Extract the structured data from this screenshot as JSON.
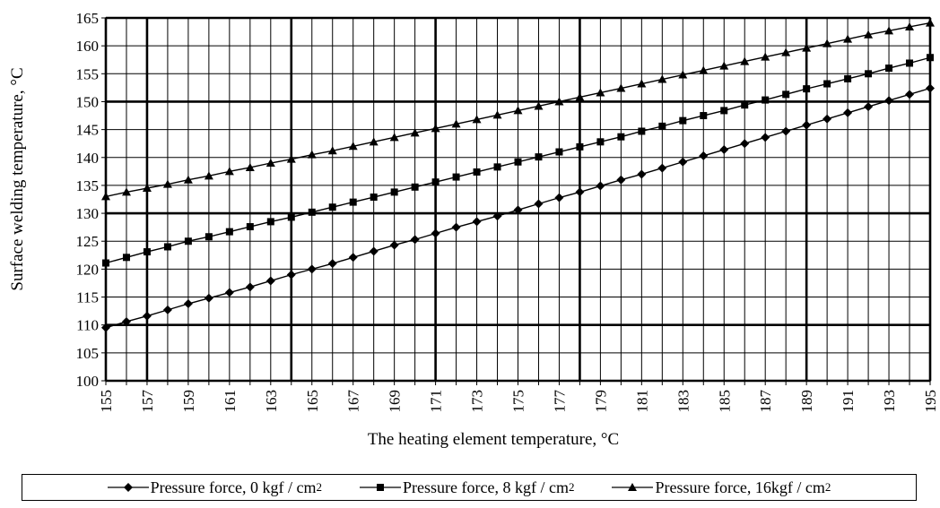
{
  "chart_data": {
    "type": "line",
    "xlabel": "The heating element temperature, °C",
    "ylabel": "Surface welding temperature, °C",
    "xlim": [
      155,
      195
    ],
    "ylim": [
      100,
      165
    ],
    "x_tick_labels": [
      "155",
      "157",
      "159",
      "161",
      "163",
      "165",
      "167",
      "169",
      "171",
      "173",
      "175",
      "177",
      "179",
      "181",
      "183",
      "185",
      "187",
      "189",
      "191",
      "193",
      "195"
    ],
    "y_tick_labels": [
      "100",
      "105",
      "110",
      "115",
      "120",
      "125",
      "130",
      "135",
      "140",
      "145",
      "150",
      "155",
      "160",
      "165"
    ],
    "grid": true,
    "legend_position": "bottom",
    "x": [
      155,
      156,
      157,
      158,
      159,
      160,
      161,
      162,
      163,
      164,
      165,
      166,
      167,
      168,
      169,
      170,
      171,
      172,
      173,
      174,
      175,
      176,
      177,
      178,
      179,
      180,
      181,
      182,
      183,
      184,
      185,
      186,
      187,
      188,
      189,
      190,
      191,
      192,
      193,
      194,
      195
    ],
    "series": [
      {
        "name": "Pressure force, 0 kgf / cm",
        "unit_sup": "2",
        "marker": "diamond",
        "values": [
          109.5,
          110.6,
          111.6,
          112.7,
          113.8,
          114.8,
          115.8,
          116.8,
          117.9,
          119.0,
          120.0,
          121.0,
          122.1,
          123.2,
          124.3,
          125.3,
          126.4,
          127.5,
          128.5,
          129.5,
          130.6,
          131.7,
          132.8,
          133.8,
          134.9,
          136.0,
          137.0,
          138.1,
          139.2,
          140.3,
          141.4,
          142.5,
          143.6,
          144.7,
          145.8,
          146.9,
          148.0,
          149.1,
          150.2,
          151.3,
          152.4
        ]
      },
      {
        "name": "Pressure force, 8 kgf / cm",
        "unit_sup": "2",
        "marker": "square",
        "values": [
          121.1,
          122.1,
          123.1,
          124.0,
          125.0,
          125.8,
          126.7,
          127.6,
          128.5,
          129.3,
          130.2,
          131.1,
          132.0,
          132.9,
          133.8,
          134.7,
          135.6,
          136.5,
          137.4,
          138.3,
          139.2,
          140.1,
          141.0,
          141.9,
          142.8,
          143.7,
          144.7,
          145.6,
          146.6,
          147.5,
          148.4,
          149.4,
          150.3,
          151.3,
          152.3,
          153.2,
          154.1,
          155.0,
          156.0,
          156.9,
          157.9
        ]
      },
      {
        "name": "Pressure force, 16kgf / cm",
        "unit_sup": "2",
        "marker": "triangle",
        "values": [
          133.0,
          133.8,
          134.5,
          135.2,
          136.0,
          136.7,
          137.5,
          138.2,
          139.0,
          139.7,
          140.5,
          141.2,
          142.0,
          142.8,
          143.6,
          144.4,
          145.2,
          146.0,
          146.8,
          147.6,
          148.4,
          149.2,
          150.0,
          150.8,
          151.6,
          152.4,
          153.2,
          154.0,
          154.8,
          155.6,
          156.4,
          157.2,
          158.0,
          158.8,
          159.6,
          160.4,
          161.2,
          162.0,
          162.7,
          163.4,
          164.1
        ]
      }
    ]
  },
  "legend": {
    "items": [
      {
        "label": "Pressure force, 0 kgf / cm",
        "sup": "2"
      },
      {
        "label": "Pressure force, 8 kgf / cm",
        "sup": "2"
      },
      {
        "label": "Pressure force, 16kgf / cm",
        "sup": "2"
      }
    ]
  }
}
